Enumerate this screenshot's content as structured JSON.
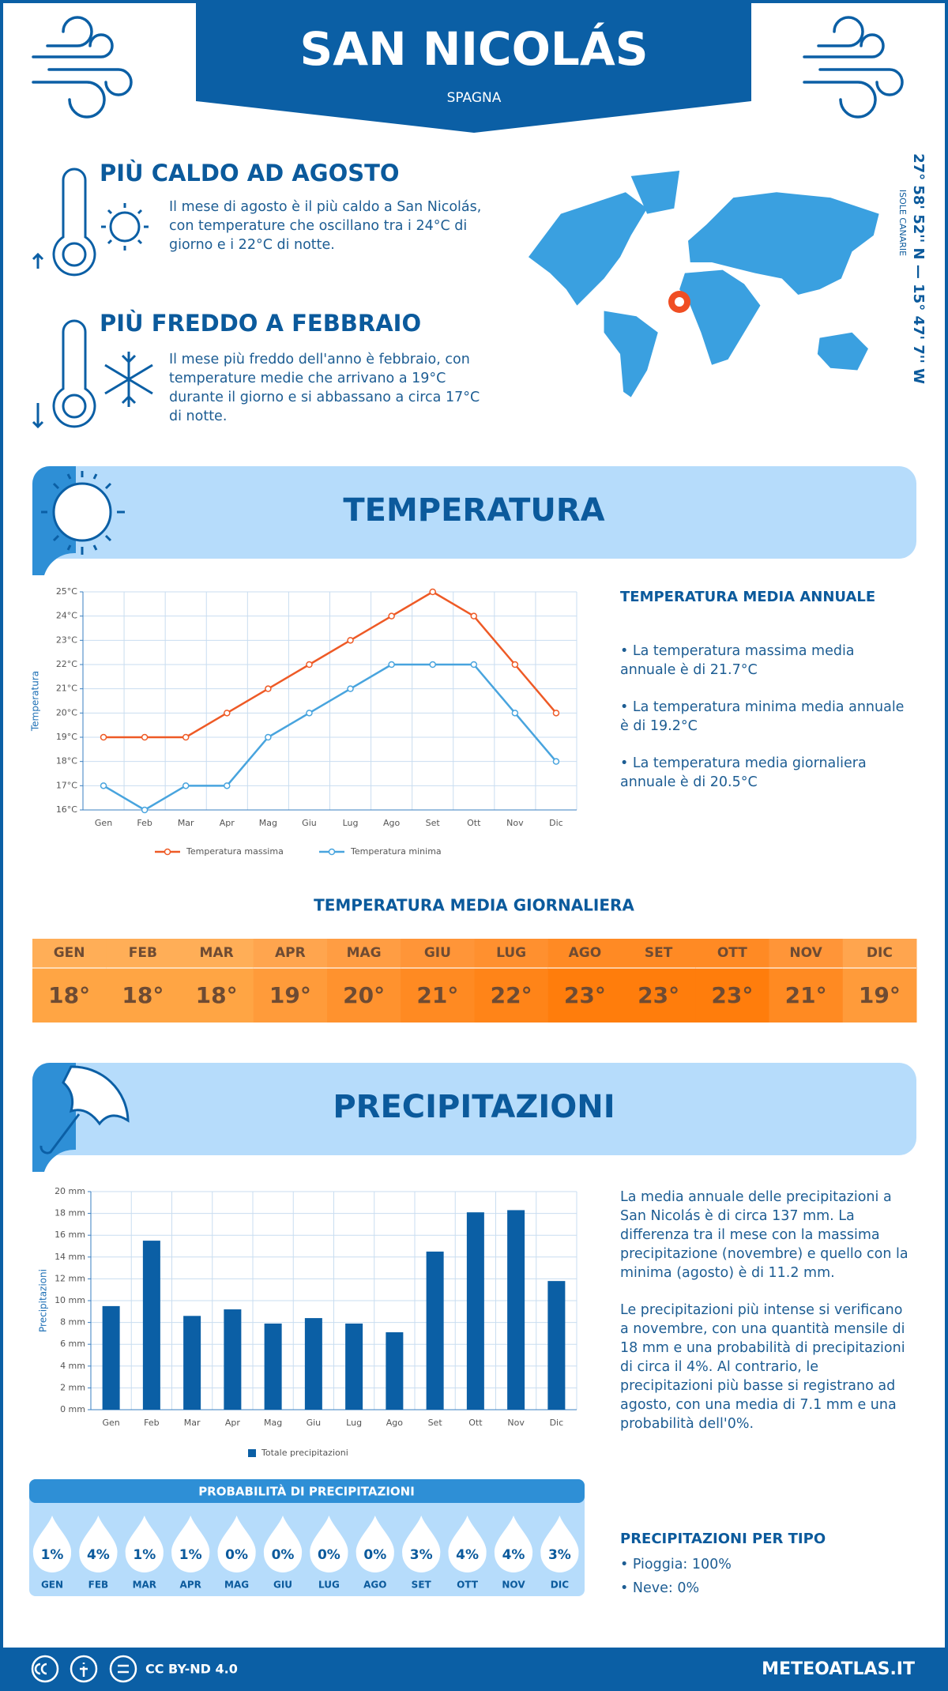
{
  "header": {
    "title": "SAN NICOLÁS",
    "subtitle": "SPAGNA"
  },
  "location": {
    "coordinates": "27° 58' 52'' N — 15° 47' 7'' W",
    "region": "ISOLE CANARIE"
  },
  "highlights": [
    {
      "title": "PIÙ CALDO AD AGOSTO",
      "text": "Il mese di agosto è il più caldo a San Nicolás, con temperature che oscillano tra i 24°C di giorno e i 22°C di notte."
    },
    {
      "title": "PIÙ FREDDO A FEBBRAIO",
      "text": "Il mese più freddo dell'anno è febbraio, con temperature medie che arrivano a 19°C durante il giorno e si abbassano a circa 17°C di notte."
    }
  ],
  "temperature": {
    "title": "TEMPERATURA",
    "summary_title": "TEMPERATURA MEDIA ANNUALE",
    "summary": [
      "• La temperatura massima media annuale è di 21.7°C",
      "• La temperatura minima media annuale è di 19.2°C",
      "• La temperatura media giornaliera annuale è di 20.5°C"
    ],
    "daily": {
      "title": "TEMPERATURA MEDIA GIORNALIERA",
      "months": [
        "GEN",
        "FEB",
        "MAR",
        "APR",
        "MAG",
        "GIU",
        "LUG",
        "AGO",
        "SET",
        "OTT",
        "NOV",
        "DIC"
      ],
      "values": [
        "18°",
        "18°",
        "18°",
        "19°",
        "20°",
        "21°",
        "22°",
        "23°",
        "23°",
        "23°",
        "21°",
        "19°"
      ],
      "colors": [
        "#ffa544",
        "#ffa544",
        "#ffa544",
        "#ff9b3a",
        "#ff922e",
        "#ff8a22",
        "#ff8418",
        "#ff7d0c",
        "#ff7d0c",
        "#ff7d0c",
        "#ff8a22",
        "#ff9b3a"
      ]
    }
  },
  "chart_data": [
    {
      "type": "line",
      "y_label": "Temperatura",
      "categories": [
        "Gen",
        "Feb",
        "Mar",
        "Apr",
        "Mag",
        "Giu",
        "Lug",
        "Ago",
        "Set",
        "Ott",
        "Nov",
        "Dic"
      ],
      "series": [
        {
          "name": "Temperatura massima",
          "color": "#ee5a26",
          "values": [
            19,
            19,
            19,
            20,
            21,
            22,
            23,
            24,
            25,
            24,
            22,
            20
          ]
        },
        {
          "name": "Temperatura minima",
          "color": "#48a4de",
          "values": [
            17,
            16,
            17,
            17,
            19,
            20,
            21,
            22,
            22,
            22,
            20,
            18
          ]
        }
      ],
      "ylim": [
        16,
        25
      ],
      "yticks": [
        {
          "value": 16,
          "label": "16°C"
        },
        {
          "value": 17,
          "label": "17°C"
        },
        {
          "value": 18,
          "label": "18°C"
        },
        {
          "value": 19,
          "label": "19°C"
        },
        {
          "value": 20,
          "label": "20°C"
        },
        {
          "value": 21,
          "label": "21°C"
        },
        {
          "value": 22,
          "label": "22°C"
        },
        {
          "value": 23,
          "label": "23°C"
        },
        {
          "value": 24,
          "label": "24°C"
        },
        {
          "value": 25,
          "label": "25°C"
        }
      ],
      "grid": true
    },
    {
      "type": "bar",
      "y_label": "Precipitazioni",
      "categories": [
        "Gen",
        "Feb",
        "Mar",
        "Apr",
        "Mag",
        "Giu",
        "Lug",
        "Ago",
        "Set",
        "Ott",
        "Nov",
        "Dic"
      ],
      "series": [
        {
          "name": "Totale precipitazioni",
          "color": "#0b5fa5",
          "values": [
            9.5,
            15.5,
            8.6,
            9.2,
            7.9,
            8.4,
            7.9,
            7.1,
            14.5,
            18.1,
            18.3,
            11.8
          ]
        }
      ],
      "ylim": [
        0,
        20
      ],
      "yticks": [
        {
          "value": 0,
          "label": "0 mm"
        },
        {
          "value": 2,
          "label": "2 mm"
        },
        {
          "value": 4,
          "label": "4 mm"
        },
        {
          "value": 6,
          "label": "6 mm"
        },
        {
          "value": 8,
          "label": "8 mm"
        },
        {
          "value": 10,
          "label": "10 mm"
        },
        {
          "value": 12,
          "label": "12 mm"
        },
        {
          "value": 14,
          "label": "14 mm"
        },
        {
          "value": 16,
          "label": "16 mm"
        },
        {
          "value": 18,
          "label": "18 mm"
        },
        {
          "value": 20,
          "label": "20 mm"
        }
      ],
      "grid": true
    }
  ],
  "precipitation": {
    "title": "PRECIPITAZIONI",
    "paragraphs": [
      "La media annuale delle precipitazioni a San Nicolás è di circa 137 mm. La differenza tra il mese con la massima precipitazione (novembre) e quello con la minima (agosto) è di 11.2 mm.",
      "Le precipitazioni più intense si verificano a novembre, con una quantità mensile di 18 mm e una probabilità di precipitazioni di circa il 4%. Al contrario, le precipitazioni più basse si registrano ad agosto, con una media di 7.1 mm e una probabilità dell'0%."
    ],
    "probability": {
      "title": "PROBABILITÀ DI PRECIPITAZIONI",
      "months": [
        "GEN",
        "FEB",
        "MAR",
        "APR",
        "MAG",
        "GIU",
        "LUG",
        "AGO",
        "SET",
        "OTT",
        "NOV",
        "DIC"
      ],
      "values": [
        "1%",
        "4%",
        "1%",
        "1%",
        "0%",
        "0%",
        "0%",
        "0%",
        "3%",
        "4%",
        "4%",
        "3%"
      ]
    },
    "by_type": {
      "title": "PRECIPITAZIONI PER TIPO",
      "items": [
        "• Pioggia: 100%",
        "• Neve: 0%"
      ]
    }
  },
  "footer": {
    "license": "CC BY-ND 4.0",
    "site": "METEOATLAS.IT"
  }
}
